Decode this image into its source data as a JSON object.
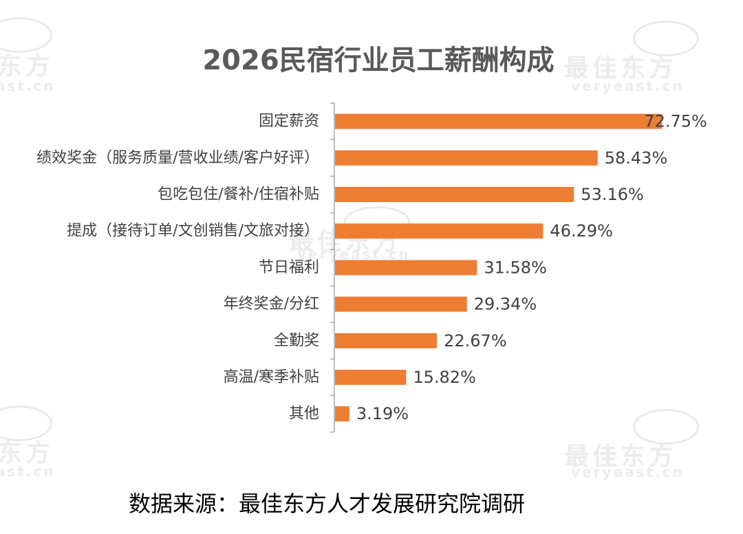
{
  "watermark": {
    "brand": "最佳东方",
    "brand_part": "东方",
    "site": "veryeast.cn",
    "site_part": "ast.cn"
  },
  "chart_data": {
    "type": "bar",
    "orientation": "horizontal",
    "title": "2026民宿行业员工薪酬构成",
    "xlabel": "",
    "ylabel": "",
    "categories": [
      "固定薪资",
      "绩效奖金（服务质量/营收业绩/客户好评）",
      "包吃包住/餐补/住宿补贴",
      "提成（接待订单/文创销售/文旅对接）",
      "节日福利",
      "年终奖金/分红",
      "全勤奖",
      "高温/寒季补贴",
      "其他"
    ],
    "values": [
      72.75,
      58.43,
      53.16,
      46.29,
      31.58,
      29.34,
      22.67,
      15.82,
      3.19
    ],
    "value_labels": [
      "72.75%",
      "58.43%",
      "53.16%",
      "46.29%",
      "31.58%",
      "29.34%",
      "22.67%",
      "15.82%",
      "3.19%"
    ],
    "xlim": [
      0,
      75
    ],
    "grid": false,
    "legend": "none",
    "colors": {
      "bar": "#ed7d31",
      "axis": "#a6a6a6",
      "label": "#404040",
      "title": "#595959"
    },
    "source": "数据来源：最佳东方人才发展研究院调研"
  }
}
